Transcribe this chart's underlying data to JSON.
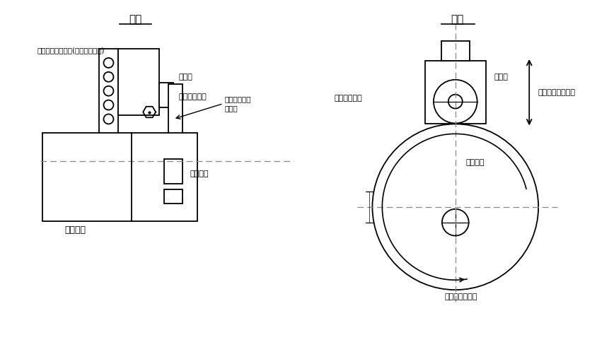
{
  "bg_color": "#ffffff",
  "line_color": "#000000",
  "dashline_color": "#888888",
  "title_left": "側面",
  "title_right": "正面",
  "label_linear_guide": "直進転がり軸受け(リニアガイド)",
  "label_moving_table_left": "移動台",
  "label_cam_follower_left": "カムフォロア",
  "label_cam_follower_axis_line1": "カムフォロア",
  "label_cam_follower_axis_line2": "回転軸",
  "label_eccentric_cam_left": "偏芯カム",
  "label_motor": "モーター",
  "label_moving_table_right": "移動台",
  "label_cam_follower_right": "カムフォロア",
  "label_eccentric_cam_right": "偏芯カム",
  "label_linear_motion": "移動台の直進運動",
  "label_cam_rotation": "偏心カムの回転"
}
